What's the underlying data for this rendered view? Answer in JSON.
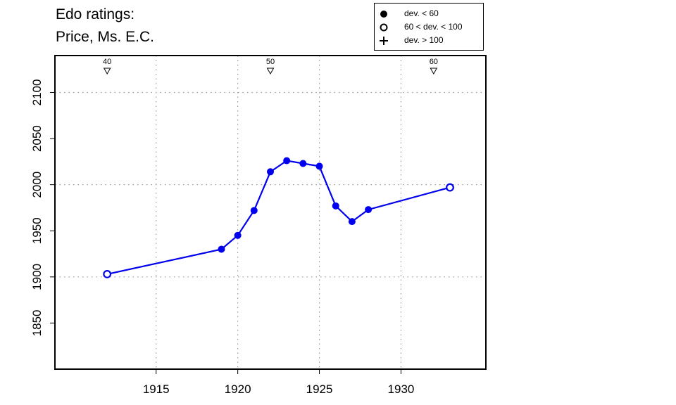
{
  "chart_data": {
    "type": "line",
    "title_lines": [
      "Edo ratings:",
      "Price, Ms. E.C."
    ],
    "xlabel": "",
    "ylabel": "",
    "xlim": [
      1908.8,
      1935.2
    ],
    "ylim": [
      1800,
      2140
    ],
    "x_ticks": [
      1915,
      1920,
      1925,
      1930
    ],
    "y_ticks": [
      1850,
      1900,
      1950,
      2000,
      2050,
      2100
    ],
    "x_grid": [
      1915,
      1920,
      1925,
      1930
    ],
    "y_grid": [
      1900,
      2000,
      2100
    ],
    "series_color": "#0000ee",
    "series": [
      {
        "x": [
          1912,
          1919,
          1920,
          1921,
          1922,
          1923,
          1924,
          1925,
          1926,
          1927,
          1928,
          1933
        ],
        "y": [
          1903,
          1930,
          1945,
          1972,
          2014,
          2026,
          2023,
          2020,
          1977,
          1960,
          1973,
          1997
        ],
        "marker": [
          "open",
          "filled",
          "filled",
          "filled",
          "filled",
          "filled",
          "filled",
          "filled",
          "filled",
          "filled",
          "filled",
          "open"
        ]
      }
    ],
    "top_markers": [
      {
        "x": 1912,
        "label": "40"
      },
      {
        "x": 1922,
        "label": "50"
      },
      {
        "x": 1932,
        "label": "60"
      }
    ],
    "legend": {
      "position": "top-right",
      "entries": [
        {
          "symbol": "filled-circle",
          "label": "dev. < 60"
        },
        {
          "symbol": "open-circle",
          "label": "60 < dev. < 100"
        },
        {
          "symbol": "plus",
          "label": "dev. > 100"
        }
      ]
    }
  }
}
